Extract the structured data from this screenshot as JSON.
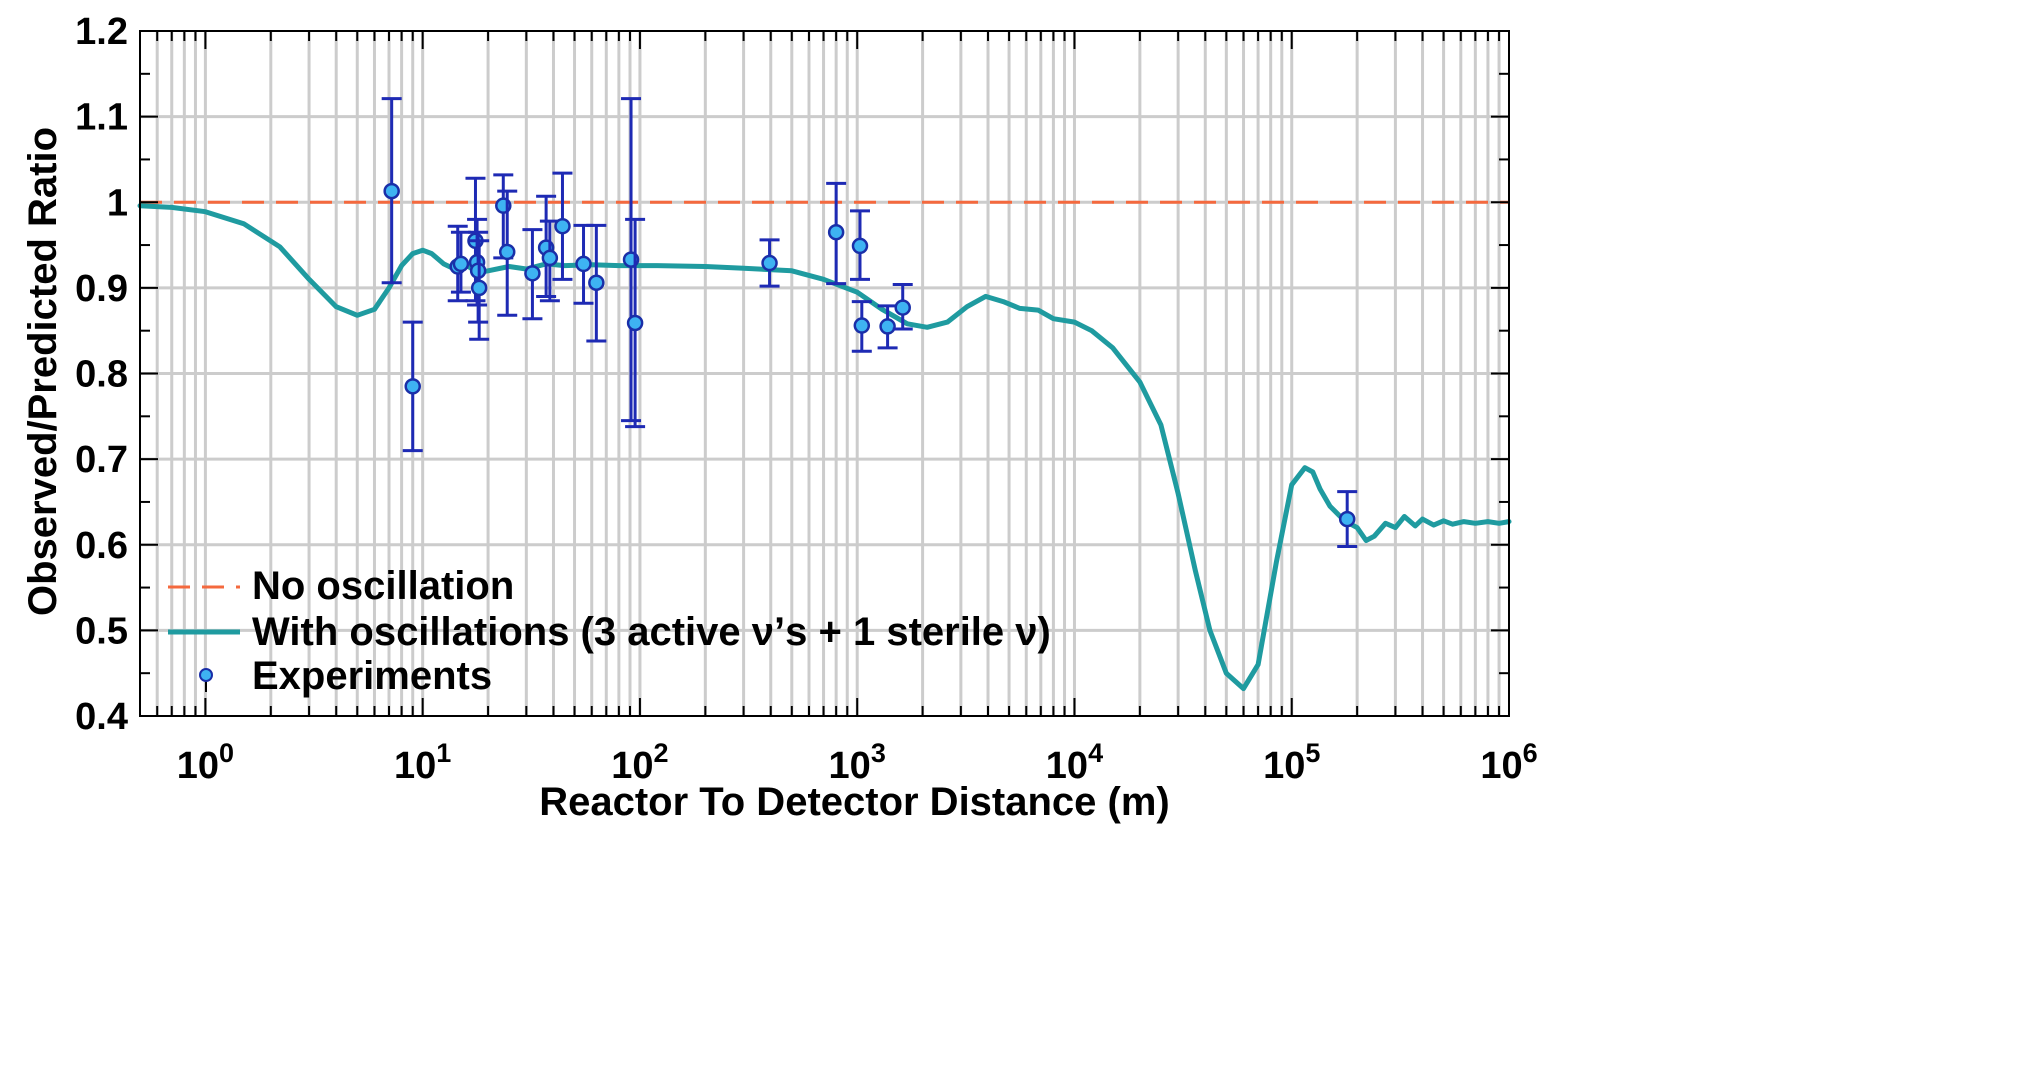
{
  "chart_data": {
    "type": "scatter",
    "xscale": "log",
    "xlim": [
      0.5,
      1000000
    ],
    "ylim": [
      0.4,
      1.2
    ],
    "xlabel": "Reactor To Detector Distance (m)",
    "ylabel": "Observed/Predicted Ratio",
    "grid": true,
    "y_ticks": [
      "0.4",
      "0.5",
      "0.6",
      "0.7",
      "0.8",
      "0.9",
      "1",
      "1.1",
      "1.2"
    ],
    "x_ticks": [
      {
        "base": "10",
        "exp": "0",
        "value": 1
      },
      {
        "base": "10",
        "exp": "1",
        "value": 10
      },
      {
        "base": "10",
        "exp": "2",
        "value": 100
      },
      {
        "base": "10",
        "exp": "3",
        "value": 1000
      },
      {
        "base": "10",
        "exp": "4",
        "value": 10000
      },
      {
        "base": "10",
        "exp": "5",
        "value": 100000
      },
      {
        "base": "10",
        "exp": "6",
        "value": 1000000
      }
    ],
    "legend": {
      "position": "bottom-left",
      "entries": [
        {
          "label": "No oscillation",
          "style": "dashed-line"
        },
        {
          "label": "With oscillations (3 active ν’s  + 1 sterile ν)",
          "style": "solid-line"
        },
        {
          "label": "Experiments",
          "style": "marker"
        }
      ]
    },
    "series": [
      {
        "name": "No oscillation",
        "style": "dashed",
        "x": [
          0.5,
          1000000
        ],
        "y": [
          1.0,
          1.0
        ]
      },
      {
        "name": "With oscillations (3 active ν’s  + 1 sterile ν)",
        "style": "solid",
        "x": [
          0.5,
          0.7,
          1.0,
          1.5,
          2.2,
          3.0,
          4.0,
          5.0,
          6.0,
          7.0,
          8.0,
          9.0,
          10.0,
          11.0,
          12.5,
          14.0,
          16.0,
          18.0,
          20.0,
          25.0,
          30.0,
          37.0,
          45.0,
          60.0,
          80.0,
          120.0,
          200.0,
          300.0,
          500.0,
          700.0,
          1000.0,
          1300.0,
          1700.0,
          2100.0,
          2600.0,
          3200.0,
          3900.0,
          4700.0,
          5600.0,
          6800.0,
          8000.0,
          10000.0,
          12000.0,
          15000.0,
          20000.0,
          25000.0,
          30000.0,
          36000.0,
          42000.0,
          50000.0,
          60000.0,
          70000.0,
          85000.0,
          100000.0,
          115000.0,
          125000.0,
          135000.0,
          150000.0,
          175000.0,
          200000.0,
          220000.0,
          240000.0,
          270000.0,
          300000.0,
          330000.0,
          370000.0,
          400000.0,
          450000.0,
          500000.0,
          550000.0,
          620000.0,
          700000.0,
          800000.0,
          900000.0,
          1000000.0
        ],
        "y": [
          0.996,
          0.994,
          0.989,
          0.975,
          0.948,
          0.91,
          0.878,
          0.868,
          0.875,
          0.9,
          0.926,
          0.94,
          0.944,
          0.94,
          0.928,
          0.922,
          0.926,
          0.918,
          0.92,
          0.925,
          0.922,
          0.928,
          0.926,
          0.927,
          0.926,
          0.926,
          0.925,
          0.923,
          0.92,
          0.91,
          0.895,
          0.875,
          0.858,
          0.854,
          0.86,
          0.878,
          0.89,
          0.884,
          0.876,
          0.874,
          0.864,
          0.86,
          0.85,
          0.83,
          0.79,
          0.74,
          0.66,
          0.57,
          0.5,
          0.45,
          0.432,
          0.46,
          0.58,
          0.67,
          0.69,
          0.685,
          0.665,
          0.645,
          0.628,
          0.62,
          0.605,
          0.61,
          0.625,
          0.62,
          0.633,
          0.622,
          0.63,
          0.623,
          0.628,
          0.624,
          0.627,
          0.625,
          0.627,
          0.625,
          0.627
        ]
      }
    ],
    "experiments": [
      {
        "x": 7.2,
        "y": 1.013,
        "lo": 0.906,
        "hi": 1.121
      },
      {
        "x": 9.0,
        "y": 0.785,
        "lo": 0.71,
        "hi": 0.86
      },
      {
        "x": 14.5,
        "y": 0.925,
        "lo": 0.885,
        "hi": 0.972
      },
      {
        "x": 15.0,
        "y": 0.928,
        "lo": 0.895,
        "hi": 0.965
      },
      {
        "x": 17.5,
        "y": 0.955,
        "lo": 0.885,
        "hi": 1.028
      },
      {
        "x": 17.8,
        "y": 0.93,
        "lo": 0.88,
        "hi": 0.98
      },
      {
        "x": 18.0,
        "y": 0.92,
        "lo": 0.86,
        "hi": 0.965
      },
      {
        "x": 18.2,
        "y": 0.9,
        "lo": 0.84,
        "hi": 0.955
      },
      {
        "x": 23.5,
        "y": 0.996,
        "lo": 0.935,
        "hi": 1.032
      },
      {
        "x": 24.5,
        "y": 0.942,
        "lo": 0.868,
        "hi": 1.013
      },
      {
        "x": 32.0,
        "y": 0.917,
        "lo": 0.864,
        "hi": 0.968
      },
      {
        "x": 37.0,
        "y": 0.947,
        "lo": 0.89,
        "hi": 1.007
      },
      {
        "x": 38.5,
        "y": 0.935,
        "lo": 0.885,
        "hi": 0.978
      },
      {
        "x": 44.0,
        "y": 0.972,
        "lo": 0.91,
        "hi": 1.034
      },
      {
        "x": 55.0,
        "y": 0.928,
        "lo": 0.882,
        "hi": 0.973
      },
      {
        "x": 63.0,
        "y": 0.906,
        "lo": 0.838,
        "hi": 0.973
      },
      {
        "x": 91.0,
        "y": 0.933,
        "lo": 0.745,
        "hi": 1.121
      },
      {
        "x": 95.0,
        "y": 0.859,
        "lo": 0.738,
        "hi": 0.98
      },
      {
        "x": 395.0,
        "y": 0.929,
        "lo": 0.902,
        "hi": 0.956
      },
      {
        "x": 800.0,
        "y": 0.965,
        "lo": 0.905,
        "hi": 1.022
      },
      {
        "x": 1030.0,
        "y": 0.949,
        "lo": 0.91,
        "hi": 0.99
      },
      {
        "x": 1050.0,
        "y": 0.856,
        "lo": 0.826,
        "hi": 0.884
      },
      {
        "x": 1380.0,
        "y": 0.855,
        "lo": 0.83,
        "hi": 0.879
      },
      {
        "x": 1620.0,
        "y": 0.877,
        "lo": 0.852,
        "hi": 0.904
      },
      {
        "x": 180000.0,
        "y": 0.63,
        "lo": 0.598,
        "hi": 0.662
      }
    ],
    "colors": {
      "no_oscillation": "#F4693E",
      "with_oscillations": "#1F9BA0",
      "marker_fill": "#3EB3F2",
      "marker_stroke": "#1A2FA8",
      "errorbar": "#1E2AB4",
      "grid": "#cccccc",
      "axes": "#000000"
    }
  }
}
